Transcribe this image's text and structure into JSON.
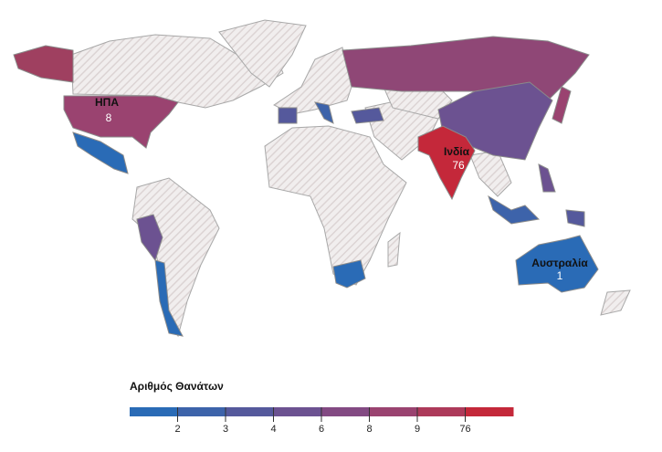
{
  "map": {
    "legend": {
      "title": "Αριθμός Θανάτων",
      "ticks": [
        2,
        3,
        4,
        6,
        8,
        9,
        76
      ],
      "colors": [
        "#2a6bb6",
        "#3d63aa",
        "#55599c",
        "#6c5291",
        "#834a83",
        "#9a4370",
        "#ad3a5a",
        "#c4283a"
      ]
    },
    "regions": [
      {
        "name": "ΗΠΑ",
        "value": 8
      },
      {
        "name": "Ινδία",
        "value": 76
      },
      {
        "name": "Αυστραλία",
        "value": 1
      }
    ]
  }
}
